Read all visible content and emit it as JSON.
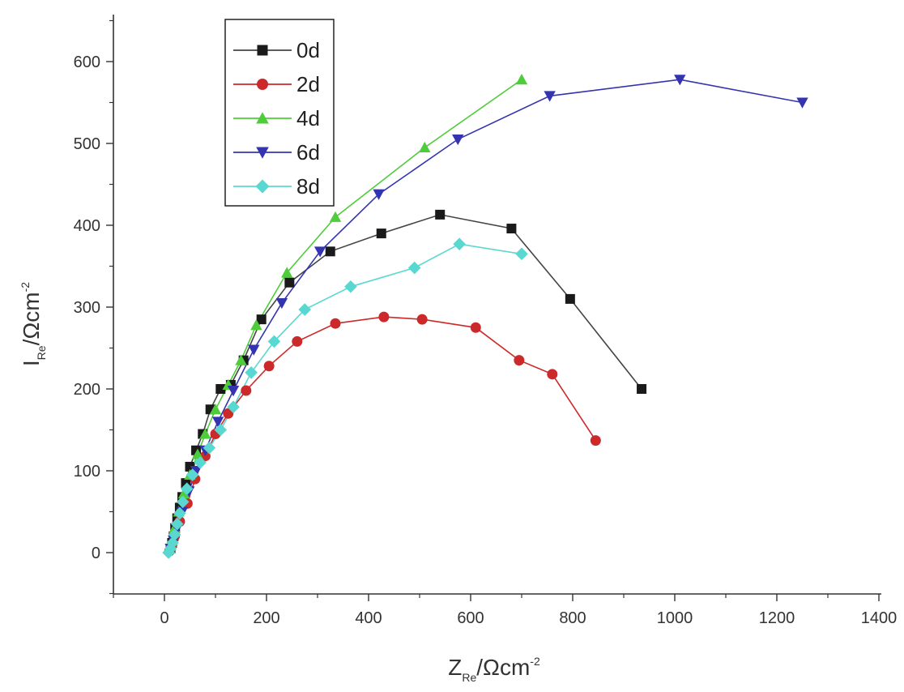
{
  "chart_data": {
    "type": "scatter",
    "title": "",
    "xlabel": {
      "main": "Z",
      "sub": "Re",
      "unit": "/Ωcm",
      "sup": "-2"
    },
    "ylabel": {
      "main": "I",
      "sub": "Re",
      "unit": "/Ωcm",
      "sup": "-2"
    },
    "xlim": [
      -100,
      1400
    ],
    "ylim": [
      -50,
      650
    ],
    "xticks": [
      0,
      200,
      400,
      600,
      800,
      1000,
      1200,
      1400
    ],
    "yticks": [
      0,
      100,
      200,
      300,
      400,
      500,
      600
    ],
    "legend_position": "top-left",
    "series": [
      {
        "name": "0d",
        "color": "#1a1a1a",
        "line_color": "#444444",
        "marker": "square",
        "x": [
          12,
          15,
          18,
          21,
          25,
          30,
          35,
          42,
          50,
          62,
          75,
          90,
          110,
          130,
          155,
          190,
          245,
          325,
          425,
          540,
          680,
          795,
          935
        ],
        "y": [
          5,
          12,
          20,
          30,
          42,
          55,
          68,
          85,
          105,
          125,
          145,
          175,
          200,
          205,
          235,
          285,
          330,
          368,
          390,
          413,
          396,
          310,
          200
        ]
      },
      {
        "name": "2d",
        "color": "#cc2a2a",
        "line_color": "#cc2a2a",
        "marker": "circle",
        "x": [
          10,
          15,
          20,
          30,
          45,
          60,
          80,
          100,
          125,
          160,
          205,
          260,
          335,
          430,
          505,
          610,
          695,
          760,
          845
        ],
        "y": [
          2,
          10,
          20,
          38,
          60,
          90,
          118,
          145,
          170,
          198,
          228,
          258,
          280,
          288,
          285,
          275,
          235,
          218,
          137
        ]
      },
      {
        "name": "4d",
        "color": "#4fcc3a",
        "line_color": "#4fcc3a",
        "marker": "triangle-up",
        "x": [
          10,
          15,
          20,
          28,
          38,
          50,
          65,
          80,
          100,
          125,
          150,
          180,
          240,
          335,
          510,
          700
        ],
        "y": [
          5,
          15,
          30,
          50,
          72,
          95,
          120,
          145,
          175,
          205,
          235,
          278,
          342,
          410,
          495,
          578
        ]
      },
      {
        "name": "6d",
        "color": "#3434b0",
        "line_color": "#3434b0",
        "marker": "triangle-down",
        "x": [
          12,
          18,
          25,
          35,
          48,
          62,
          80,
          105,
          135,
          175,
          230,
          305,
          420,
          575,
          755,
          1010,
          1250
        ],
        "y": [
          5,
          15,
          30,
          50,
          75,
          100,
          125,
          160,
          198,
          248,
          305,
          368,
          438,
          505,
          558,
          578,
          550
        ]
      },
      {
        "name": "8d",
        "color": "#58d8d0",
        "line_color": "#58d8d0",
        "marker": "diamond",
        "x": [
          8,
          12,
          16,
          20,
          25,
          30,
          36,
          44,
          55,
          70,
          88,
          110,
          135,
          170,
          215,
          275,
          365,
          490,
          578,
          700
        ],
        "y": [
          0,
          5,
          12,
          22,
          35,
          48,
          62,
          78,
          95,
          110,
          128,
          150,
          178,
          220,
          258,
          297,
          325,
          348,
          377,
          365
        ]
      }
    ]
  }
}
